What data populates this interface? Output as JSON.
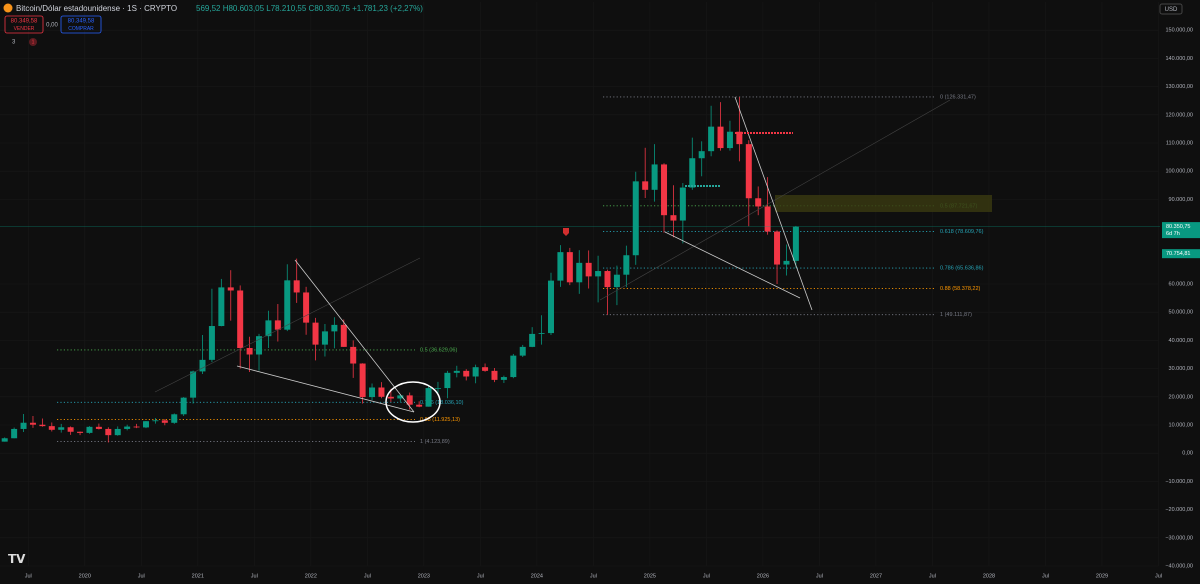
{
  "ui": {
    "ohlc": "569,52 H80.603,05 L78.210,55 C80.350,75 +1.781,23 (+2,27%)",
    "sell_price": "80.349,58",
    "sell_label": "VENDER",
    "spread": "0,00",
    "buy_price": "80.349,58",
    "buy_label": "COMPRAR",
    "indicators": "3",
    "alerts": "1",
    "currency": "USD"
  },
  "chart_data": {
    "type": "candlestick",
    "title": "Bitcoin/Dólar estadounidense · 1S · CRYPTO",
    "up_color": "#089981",
    "down_color": "#f23645",
    "grid": true,
    "xlim": [
      "2019-04",
      "2029-07"
    ],
    "xticks": [
      {
        "value": "2019-07",
        "label": "Jul"
      },
      {
        "value": "2020-01",
        "label": "2020"
      },
      {
        "value": "2020-07",
        "label": "Jul"
      },
      {
        "value": "2021-01",
        "label": "2021"
      },
      {
        "value": "2021-07",
        "label": "Jul"
      },
      {
        "value": "2022-01",
        "label": "2022"
      },
      {
        "value": "2022-07",
        "label": "Jul"
      },
      {
        "value": "2023-01",
        "label": "2023"
      },
      {
        "value": "2023-07",
        "label": "Jul"
      },
      {
        "value": "2024-01",
        "label": "2024"
      },
      {
        "value": "2024-07",
        "label": "Jul"
      },
      {
        "value": "2025-01",
        "label": "2025"
      },
      {
        "value": "2025-07",
        "label": "Jul"
      },
      {
        "value": "2026-01",
        "label": "2026"
      },
      {
        "value": "2026-07",
        "label": "Jul"
      },
      {
        "value": "2027-01",
        "label": "2027"
      },
      {
        "value": "2027-07",
        "label": "Jul"
      },
      {
        "value": "2028-01",
        "label": "2028"
      },
      {
        "value": "2028-07",
        "label": "Jul"
      },
      {
        "value": "2029-01",
        "label": "2029"
      },
      {
        "value": "2029-07",
        "label": "Jul"
      }
    ],
    "ylim": [
      -40000,
      160000
    ],
    "yticks": [
      {
        "value": 150000,
        "label": "150.000,00"
      },
      {
        "value": 140000,
        "label": "140.000,00"
      },
      {
        "value": 130000,
        "label": "130.000,00"
      },
      {
        "value": 120000,
        "label": "120.000,00"
      },
      {
        "value": 110000,
        "label": "110.000,00"
      },
      {
        "value": 100000,
        "label": "100.000,00"
      },
      {
        "value": 90000,
        "label": "90.000,00"
      },
      {
        "value": 60000,
        "label": "60.000,00"
      },
      {
        "value": 50000,
        "label": "50.000,00"
      },
      {
        "value": 40000,
        "label": "40.000,00"
      },
      {
        "value": 30000,
        "label": "30.000,00"
      },
      {
        "value": 20000,
        "label": "20.000,00"
      },
      {
        "value": 10000,
        "label": "10.000,00"
      },
      {
        "value": 0,
        "label": "0,00"
      },
      {
        "value": -10000,
        "label": "−10.000,00"
      },
      {
        "value": -20000,
        "label": "−20.000,00"
      },
      {
        "value": -30000,
        "label": "−30.000,00"
      },
      {
        "value": -40000,
        "label": "−40.000,00"
      }
    ],
    "candles": {
      "x": [
        "2019-04",
        "2019-05",
        "2019-06",
        "2019-07",
        "2019-08",
        "2019-09",
        "2019-10",
        "2019-11",
        "2019-12",
        "2020-01",
        "2020-02",
        "2020-03",
        "2020-04",
        "2020-05",
        "2020-06",
        "2020-07",
        "2020-08",
        "2020-09",
        "2020-10",
        "2020-11",
        "2020-12",
        "2021-01",
        "2021-02",
        "2021-03",
        "2021-04",
        "2021-05",
        "2021-06",
        "2021-07",
        "2021-08",
        "2021-09",
        "2021-10",
        "2021-11",
        "2021-12",
        "2022-01",
        "2022-02",
        "2022-03",
        "2022-04",
        "2022-05",
        "2022-06",
        "2022-07",
        "2022-08",
        "2022-09",
        "2022-10",
        "2022-11",
        "2022-12",
        "2023-01",
        "2023-02",
        "2023-03",
        "2023-04",
        "2023-05",
        "2023-06",
        "2023-07",
        "2023-08",
        "2023-09",
        "2023-10",
        "2023-11",
        "2023-12",
        "2024-01",
        "2024-02",
        "2024-03",
        "2024-04",
        "2024-05",
        "2024-06",
        "2024-07",
        "2024-08",
        "2024-09",
        "2024-10",
        "2024-11",
        "2024-12",
        "2025-01",
        "2025-02",
        "2025-03",
        "2025-04",
        "2025-05",
        "2025-06",
        "2025-07",
        "2025-08",
        "2025-09",
        "2025-10",
        "2025-11",
        "2025-12",
        "2026-01",
        "2026-02",
        "2026-03",
        "2026-04"
      ],
      "open": [
        4100,
        5300,
        8600,
        10800,
        10100,
        9600,
        8300,
        9200,
        7600,
        7200,
        9350,
        8600,
        6400,
        8600,
        9450,
        9140,
        11350,
        11650,
        10780,
        13800,
        19700,
        29000,
        33100,
        45100,
        58800,
        57700,
        37300,
        35000,
        41500,
        47100,
        43800,
        61300,
        57000,
        46300,
        38500,
        43200,
        45500,
        37700,
        31800,
        19900,
        23300,
        20000,
        19400,
        20500,
        17200,
        16500,
        23100,
        23100,
        28500,
        29200,
        27200,
        30500,
        29200,
        26000,
        27000,
        34600,
        37700,
        42300,
        42600,
        61200,
        71300,
        60600,
        67500,
        62700,
        64600,
        58900,
        63300,
        70200,
        96400,
        93400,
        102400,
        84400,
        82500,
        94200,
        104600,
        107100,
        115800,
        108200,
        114000,
        109600,
        90400,
        87500,
        78600,
        66900,
        68200
      ],
      "high": [
        5600,
        9100,
        13900,
        13200,
        12300,
        10900,
        10400,
        9500,
        7700,
        9600,
        10500,
        9200,
        9500,
        10100,
        10400,
        11400,
        12500,
        12100,
        14100,
        19900,
        29300,
        41900,
        58300,
        61800,
        64900,
        59500,
        41300,
        42300,
        50500,
        52900,
        67000,
        69000,
        59000,
        48000,
        45800,
        48200,
        47400,
        40000,
        31900,
        24700,
        25200,
        22800,
        21000,
        21500,
        18400,
        23900,
        25300,
        29200,
        31000,
        29800,
        31400,
        31800,
        30200,
        27500,
        35200,
        38400,
        44700,
        48900,
        64000,
        73800,
        72800,
        72000,
        71900,
        70000,
        65100,
        66500,
        73600,
        99800,
        108300,
        109600,
        102800,
        95000,
        95800,
        111900,
        110600,
        123200,
        124500,
        117900,
        126300,
        111000,
        94600,
        97900,
        79000,
        74000,
        80600
      ],
      "low": [
        4100,
        5300,
        7500,
        9000,
        9400,
        7700,
        7300,
        6500,
        6400,
        6900,
        8400,
        3800,
        6200,
        8100,
        8900,
        8900,
        10500,
        9900,
        10400,
        13200,
        17600,
        28100,
        32300,
        45000,
        47000,
        30000,
        28800,
        29300,
        37300,
        39600,
        43300,
        53300,
        42000,
        32900,
        34300,
        37200,
        37700,
        26700,
        17600,
        18800,
        19500,
        18100,
        18200,
        15500,
        16300,
        16500,
        21400,
        19500,
        26900,
        25800,
        24800,
        28900,
        25200,
        24900,
        26600,
        34100,
        37600,
        38500,
        41900,
        59000,
        59600,
        56500,
        58400,
        53500,
        49100,
        52500,
        58900,
        66800,
        90500,
        89200,
        78200,
        76600,
        74400,
        93400,
        98200,
        105300,
        107300,
        107300,
        103500,
        80500,
        84400,
        77500,
        60000,
        63000,
        65800
      ],
      "close": [
        5300,
        8600,
        10800,
        10100,
        9600,
        8300,
        9200,
        7600,
        7200,
        9350,
        8600,
        6400,
        8600,
        9450,
        9140,
        11350,
        11650,
        10780,
        13800,
        19700,
        29000,
        33100,
        45100,
        58800,
        57700,
        37300,
        35000,
        41500,
        47100,
        43800,
        61300,
        57000,
        46300,
        38500,
        43200,
        45500,
        37700,
        31800,
        19900,
        23300,
        20000,
        19400,
        20500,
        17200,
        16500,
        23100,
        23100,
        28500,
        29200,
        27200,
        30500,
        29200,
        26000,
        27000,
        34600,
        37700,
        42300,
        42600,
        61200,
        71300,
        60600,
        67500,
        62700,
        64600,
        58900,
        63300,
        70200,
        96400,
        93400,
        102400,
        84400,
        82500,
        94200,
        104600,
        107100,
        115800,
        108200,
        114000,
        109600,
        90400,
        87500,
        78600,
        66900,
        68200,
        80350.75
      ]
    },
    "fib_groups": [
      [
        {
          "price": 36629.06,
          "label": "0.5 (36.629,06)",
          "color": "#4caf50"
        },
        {
          "price": 18036.1,
          "label": "0.786 (18.036,10)",
          "color": "#26a6b8"
        },
        {
          "price": 11925.13,
          "label": "0.88 (11.925,13)",
          "color": "#ff9800"
        },
        {
          "price": 4123.89,
          "label": "1 (4.123,89)",
          "color": "#787b86"
        }
      ],
      [
        {
          "price": 126331.47,
          "label": "0 (126.331,47)",
          "color": "#787b86"
        },
        {
          "price": 87721.67,
          "label": "0.5 (87.721,67)",
          "color": "#4caf50"
        },
        {
          "price": 78609.76,
          "label": "0.618 (78.609,76)",
          "color": "#26a6b8"
        },
        {
          "price": 65636.86,
          "label": "0.786 (65.636,86)",
          "color": "#26a6b8"
        },
        {
          "price": 58378.22,
          "label": "0.88 (58.378,22)",
          "color": "#ff9800"
        },
        {
          "price": 49111.87,
          "label": "1 (49.111,87)",
          "color": "#787b86"
        }
      ]
    ],
    "price_labels": [
      {
        "value": 80350.75,
        "label": "80.350,75",
        "sub": "6d 7h",
        "color": "#089981"
      },
      {
        "value": 70754.81,
        "label": "70.754,81",
        "color": "#089981"
      }
    ]
  }
}
